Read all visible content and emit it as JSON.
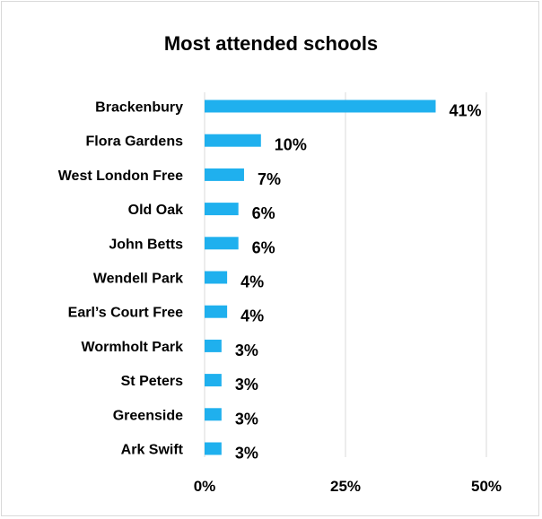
{
  "chart_data": {
    "type": "bar",
    "orientation": "horizontal",
    "title": "Most attended schools",
    "categories": [
      "Brackenbury",
      "Flora Gardens",
      "West London Free",
      "Old Oak",
      "John Betts",
      "Wendell Park",
      "Earl’s Court Free",
      "Wormholt Park",
      "St Peters",
      "Greenside",
      "Ark Swift"
    ],
    "values": [
      41,
      10,
      7,
      6,
      6,
      4,
      4,
      3,
      3,
      3,
      3
    ],
    "value_labels": [
      "41%",
      "10%",
      "7%",
      "6%",
      "6%",
      "4%",
      "4%",
      "3%",
      "3%",
      "3%",
      "3%"
    ],
    "xlim": [
      0,
      50
    ],
    "xticks": [
      0,
      25,
      50
    ],
    "xtick_labels": [
      "0%",
      "25%",
      "50%"
    ],
    "xlabel": "",
    "ylabel": "",
    "grid": "vertical",
    "legend": "none",
    "bar_color": "#1FB0EE",
    "gridline_color": "#d9d9d9"
  }
}
